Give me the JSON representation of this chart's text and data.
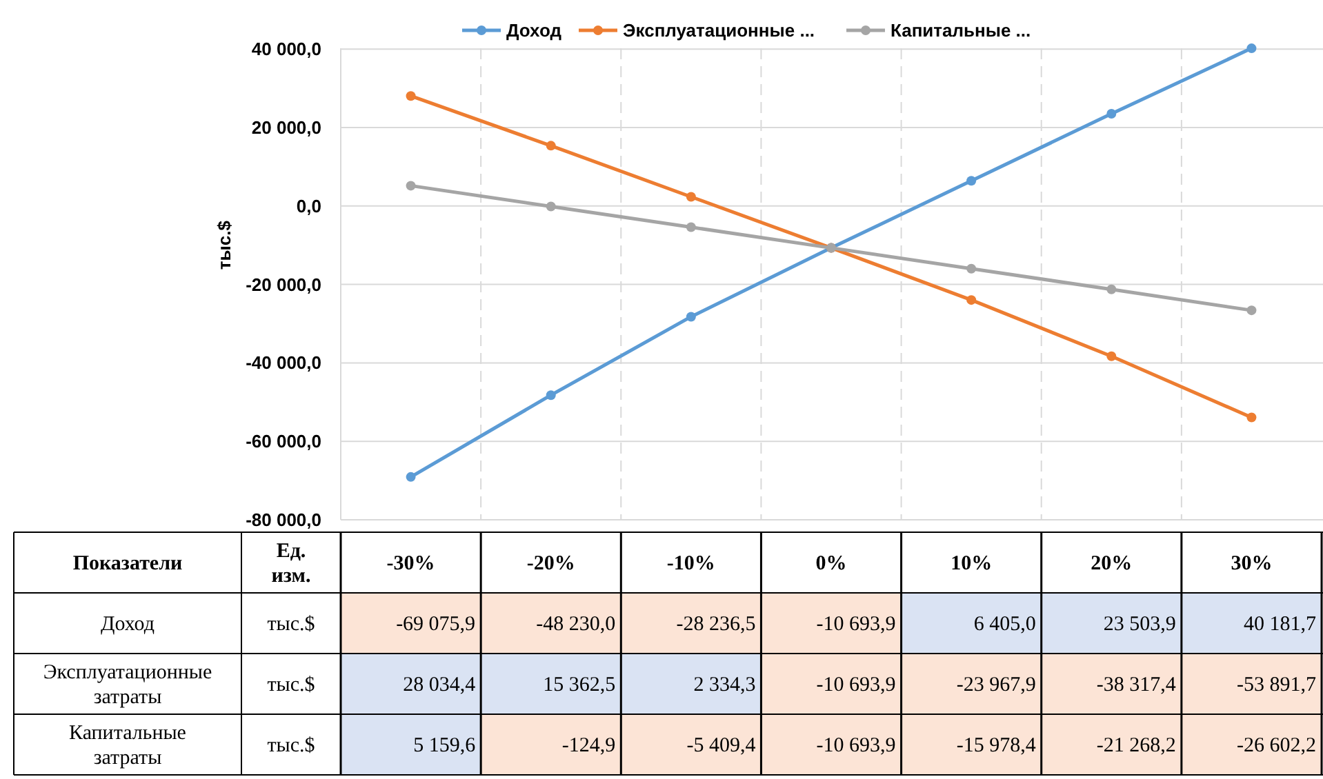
{
  "chart_data": {
    "type": "line",
    "ylabel": "тыс.$",
    "categories": [
      "-30%",
      "-20%",
      "-10%",
      "0%",
      "10%",
      "20%",
      "30%"
    ],
    "series": [
      {
        "name": "Доход",
        "color": "#5b9bd5",
        "values": [
          -69075.9,
          -48230.0,
          -28236.5,
          -10693.9,
          6405.0,
          23503.9,
          40181.7
        ],
        "value_labels": [
          "-69 075,9",
          "-48 230,0",
          "-28 236,5",
          "-10 693,9",
          "6 405,0",
          "23 503,9",
          "40 181,7"
        ]
      },
      {
        "name": "Эксплуатационные ...",
        "color": "#ed7d31",
        "values": [
          28034.4,
          15362.5,
          2334.3,
          -10693.9,
          -23967.9,
          -38317.4,
          -53891.7
        ],
        "value_labels": [
          "28 034,4",
          "15 362,5",
          "2 334,3",
          "-10 693,9",
          "-23 967,9",
          "-38 317,4",
          "-53 891,7"
        ]
      },
      {
        "name": "Капитальные ...",
        "color": "#a5a5a5",
        "values": [
          5159.6,
          -124.9,
          -5409.4,
          -10693.9,
          -15978.4,
          -21268.2,
          -26602.2
        ],
        "value_labels": [
          "5 159,6",
          "-124,9",
          "-5 409,4",
          "-10 693,9",
          "-15 978,4",
          "-21 268,2",
          "-26 602,2"
        ]
      }
    ],
    "ylim": [
      -80000,
      40200
    ],
    "yticks": [
      {
        "value": -80000,
        "label": "-80 000,0"
      },
      {
        "value": -60000,
        "label": "-60 000,0"
      },
      {
        "value": -40000,
        "label": "-40 000,0"
      },
      {
        "value": -20000,
        "label": "-20 000,0"
      },
      {
        "value": 0,
        "label": "0,0"
      },
      {
        "value": 20000,
        "label": "20 000,0"
      },
      {
        "value": 40000,
        "label": "40 000,0"
      }
    ],
    "grid": true,
    "legend": "top",
    "marker": "circle",
    "line_style": "solid",
    "annotations": [
      "Показатели",
      "Ед. изм.",
      "тыс.$",
      "Доход",
      "Эксплуатационные затраты",
      "Капитальные затраты"
    ]
  }
}
